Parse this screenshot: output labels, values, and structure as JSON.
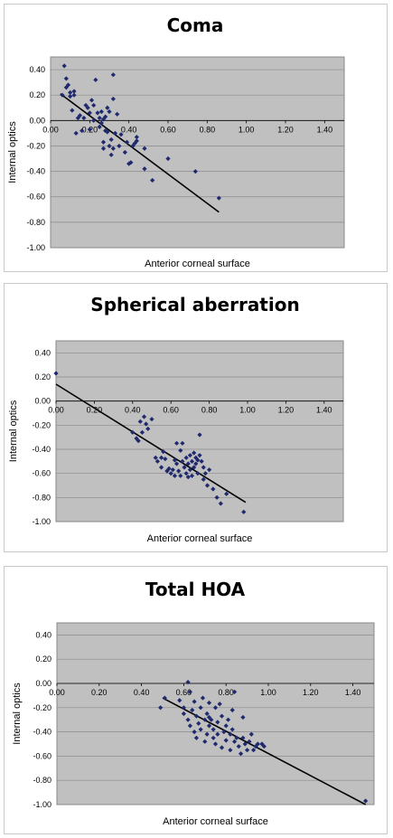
{
  "chart_data": [
    {
      "type": "scatter",
      "title": "Coma",
      "xlabel": "Anterior corneal surface",
      "ylabel": "Internal optics",
      "xlim": [
        0,
        1.5
      ],
      "ylim": [
        -1.0,
        0.5
      ],
      "xticks": [
        "0.00",
        "0.20",
        "0.40",
        "0.60",
        "0.80",
        "1.00",
        "1.20",
        "1.40"
      ],
      "yticks": [
        "0.40",
        "0.20",
        "0.00",
        "-0.20",
        "-0.40",
        "-0.60",
        "-0.80",
        "-1.00"
      ],
      "xtick_values": [
        0,
        0.2,
        0.4,
        0.6,
        0.8,
        1.0,
        1.2,
        1.4
      ],
      "ytick_values": [
        0.4,
        0.2,
        0,
        -0.2,
        -0.4,
        -0.6,
        -0.8,
        -1.0
      ],
      "trendline": [
        [
          0.05,
          0.21
        ],
        [
          0.86,
          -0.72
        ]
      ],
      "points": [
        [
          0.07,
          0.43
        ],
        [
          0.08,
          0.33
        ],
        [
          0.09,
          0.28
        ],
        [
          0.08,
          0.26
        ],
        [
          0.1,
          0.22
        ],
        [
          0.12,
          0.2
        ],
        [
          0.12,
          0.23
        ],
        [
          0.1,
          0.19
        ],
        [
          0.06,
          0.2
        ],
        [
          0.11,
          0.08
        ],
        [
          0.13,
          -0.1
        ],
        [
          0.15,
          0.04
        ],
        [
          0.14,
          0.02
        ],
        [
          0.17,
          0.02
        ],
        [
          0.18,
          0.12
        ],
        [
          0.19,
          0.1
        ],
        [
          0.2,
          0.06
        ],
        [
          0.21,
          0.16
        ],
        [
          0.22,
          0.0
        ],
        [
          0.23,
          0.32
        ],
        [
          0.24,
          0.06
        ],
        [
          0.25,
          0.02
        ],
        [
          0.25,
          -0.05
        ],
        [
          0.26,
          -0.02
        ],
        [
          0.26,
          0.07
        ],
        [
          0.27,
          0.01
        ],
        [
          0.27,
          -0.22
        ],
        [
          0.28,
          -0.08
        ],
        [
          0.28,
          0.03
        ],
        [
          0.29,
          0.1
        ],
        [
          0.29,
          -0.09
        ],
        [
          0.3,
          0.07
        ],
        [
          0.3,
          -0.2
        ],
        [
          0.31,
          -0.27
        ],
        [
          0.31,
          -0.15
        ],
        [
          0.32,
          -0.22
        ],
        [
          0.32,
          0.36
        ],
        [
          0.32,
          0.17
        ],
        [
          0.33,
          -0.1
        ],
        [
          0.34,
          0.05
        ],
        [
          0.35,
          -0.2
        ],
        [
          0.36,
          -0.11
        ],
        [
          0.38,
          -0.25
        ],
        [
          0.39,
          -0.17
        ],
        [
          0.4,
          -0.34
        ],
        [
          0.41,
          -0.33
        ],
        [
          0.42,
          -0.2
        ],
        [
          0.43,
          -0.18
        ],
        [
          0.44,
          -0.16
        ],
        [
          0.44,
          -0.13
        ],
        [
          0.48,
          -0.22
        ],
        [
          0.48,
          -0.38
        ],
        [
          0.52,
          -0.47
        ],
        [
          0.6,
          -0.3
        ],
        [
          0.74,
          -0.4
        ],
        [
          0.86,
          -0.61
        ],
        [
          0.27,
          -0.17
        ],
        [
          0.2,
          -0.07
        ],
        [
          0.16,
          -0.08
        ],
        [
          0.22,
          0.12
        ]
      ]
    },
    {
      "type": "scatter",
      "title": "Spherical aberration",
      "xlabel": "Anterior corneal surface",
      "ylabel": "Internal optics",
      "xlim": [
        0,
        1.5
      ],
      "ylim": [
        -1.0,
        0.5
      ],
      "xticks": [
        "0.00",
        "0.20",
        "0.40",
        "0.60",
        "0.80",
        "1.00",
        "1.20",
        "1.40"
      ],
      "yticks": [
        "0.40",
        "0.20",
        "0.00",
        "-0.20",
        "-0.40",
        "-0.60",
        "-0.80",
        "-1.00"
      ],
      "xtick_values": [
        0,
        0.2,
        0.4,
        0.6,
        0.8,
        1.0,
        1.2,
        1.4
      ],
      "ytick_values": [
        0.4,
        0.2,
        0,
        -0.2,
        -0.4,
        -0.6,
        -0.8,
        -1.0
      ],
      "trendline": [
        [
          0.0,
          0.14
        ],
        [
          0.99,
          -0.84
        ]
      ],
      "points": [
        [
          0.0,
          0.23
        ],
        [
          0.4,
          -0.26
        ],
        [
          0.42,
          -0.31
        ],
        [
          0.43,
          -0.33
        ],
        [
          0.44,
          -0.17
        ],
        [
          0.45,
          -0.26
        ],
        [
          0.46,
          -0.13
        ],
        [
          0.47,
          -0.19
        ],
        [
          0.48,
          -0.23
        ],
        [
          0.5,
          -0.15
        ],
        [
          0.52,
          -0.47
        ],
        [
          0.53,
          -0.5
        ],
        [
          0.55,
          -0.55
        ],
        [
          0.55,
          -0.47
        ],
        [
          0.56,
          -0.42
        ],
        [
          0.57,
          -0.48
        ],
        [
          0.58,
          -0.58
        ],
        [
          0.59,
          -0.56
        ],
        [
          0.6,
          -0.6
        ],
        [
          0.61,
          -0.57
        ],
        [
          0.62,
          -0.49
        ],
        [
          0.63,
          -0.35
        ],
        [
          0.63,
          -0.52
        ],
        [
          0.64,
          -0.58
        ],
        [
          0.65,
          -0.41
        ],
        [
          0.65,
          -0.62
        ],
        [
          0.66,
          -0.5
        ],
        [
          0.66,
          -0.35
        ],
        [
          0.67,
          -0.55
        ],
        [
          0.68,
          -0.47
        ],
        [
          0.68,
          -0.6
        ],
        [
          0.69,
          -0.52
        ],
        [
          0.7,
          -0.45
        ],
        [
          0.7,
          -0.57
        ],
        [
          0.71,
          -0.5
        ],
        [
          0.71,
          -0.62
        ],
        [
          0.72,
          -0.43
        ],
        [
          0.72,
          -0.55
        ],
        [
          0.73,
          -0.47
        ],
        [
          0.73,
          -0.52
        ],
        [
          0.74,
          -0.6
        ],
        [
          0.75,
          -0.45
        ],
        [
          0.75,
          -0.28
        ],
        [
          0.76,
          -0.5
        ],
        [
          0.77,
          -0.55
        ],
        [
          0.77,
          -0.65
        ],
        [
          0.78,
          -0.6
        ],
        [
          0.79,
          -0.7
        ],
        [
          0.8,
          -0.57
        ],
        [
          0.82,
          -0.73
        ],
        [
          0.84,
          -0.8
        ],
        [
          0.86,
          -0.85
        ],
        [
          0.89,
          -0.77
        ],
        [
          0.98,
          -0.92
        ],
        [
          0.62,
          -0.62
        ],
        [
          0.58,
          -0.58
        ],
        [
          0.69,
          -0.63
        ],
        [
          0.74,
          -0.49
        ]
      ]
    },
    {
      "type": "scatter",
      "title": "Total HOA",
      "xlabel": "Anterior corneal surface",
      "ylabel": "Internal optics",
      "xlim": [
        0,
        1.5
      ],
      "ylim": [
        -1.0,
        0.5
      ],
      "xticks": [
        "0.00",
        "0.20",
        "0.40",
        "0.60",
        "0.80",
        "1.00",
        "1.20",
        "1.40"
      ],
      "yticks": [
        "0.40",
        "0.20",
        "0.00",
        "-0.20",
        "-0.40",
        "-0.60",
        "-0.80",
        "-1.00"
      ],
      "xtick_values": [
        0,
        0.2,
        0.4,
        0.6,
        0.8,
        1.0,
        1.2,
        1.4
      ],
      "ytick_values": [
        0.4,
        0.2,
        0,
        -0.2,
        -0.4,
        -0.6,
        -0.8,
        -1.0
      ],
      "trendline": [
        [
          0.5,
          -0.12
        ],
        [
          1.46,
          -1.0
        ]
      ],
      "points": [
        [
          0.49,
          -0.2
        ],
        [
          0.51,
          -0.12
        ],
        [
          0.58,
          -0.14
        ],
        [
          0.6,
          -0.2
        ],
        [
          0.6,
          -0.25
        ],
        [
          0.62,
          0.01
        ],
        [
          0.62,
          -0.3
        ],
        [
          0.63,
          -0.07
        ],
        [
          0.63,
          -0.35
        ],
        [
          0.64,
          -0.22
        ],
        [
          0.65,
          -0.4
        ],
        [
          0.65,
          -0.15
        ],
        [
          0.66,
          -0.27
        ],
        [
          0.66,
          -0.45
        ],
        [
          0.67,
          -0.33
        ],
        [
          0.68,
          -0.2
        ],
        [
          0.68,
          -0.38
        ],
        [
          0.69,
          -0.12
        ],
        [
          0.7,
          -0.3
        ],
        [
          0.7,
          -0.48
        ],
        [
          0.71,
          -0.25
        ],
        [
          0.71,
          -0.42
        ],
        [
          0.72,
          -0.35
        ],
        [
          0.72,
          -0.16
        ],
        [
          0.73,
          -0.3
        ],
        [
          0.74,
          -0.45
        ],
        [
          0.74,
          -0.38
        ],
        [
          0.75,
          -0.2
        ],
        [
          0.75,
          -0.5
        ],
        [
          0.76,
          -0.32
        ],
        [
          0.76,
          -0.42
        ],
        [
          0.77,
          -0.17
        ],
        [
          0.78,
          -0.27
        ],
        [
          0.78,
          -0.53
        ],
        [
          0.79,
          -0.4
        ],
        [
          0.8,
          -0.35
        ],
        [
          0.8,
          -0.47
        ],
        [
          0.81,
          -0.3
        ],
        [
          0.82,
          -0.42
        ],
        [
          0.82,
          -0.55
        ],
        [
          0.83,
          -0.38
        ],
        [
          0.84,
          -0.48
        ],
        [
          0.84,
          -0.07
        ],
        [
          0.85,
          -0.45
        ],
        [
          0.86,
          -0.52
        ],
        [
          0.87,
          -0.58
        ],
        [
          0.88,
          -0.45
        ],
        [
          0.89,
          -0.5
        ],
        [
          0.9,
          -0.55
        ],
        [
          0.91,
          -0.48
        ],
        [
          0.92,
          -0.42
        ],
        [
          0.93,
          -0.55
        ],
        [
          0.94,
          -0.52
        ],
        [
          0.95,
          -0.5
        ],
        [
          0.97,
          -0.5
        ],
        [
          0.98,
          -0.52
        ],
        [
          1.46,
          -0.97
        ],
        [
          0.88,
          -0.28
        ],
        [
          0.83,
          -0.22
        ],
        [
          0.72,
          -0.28
        ]
      ]
    }
  ],
  "colors": {
    "plot_bg": "#c0c0c0",
    "marker": "#1f2a6e",
    "trendline": "#000000",
    "grid": "#8a8a8a"
  }
}
